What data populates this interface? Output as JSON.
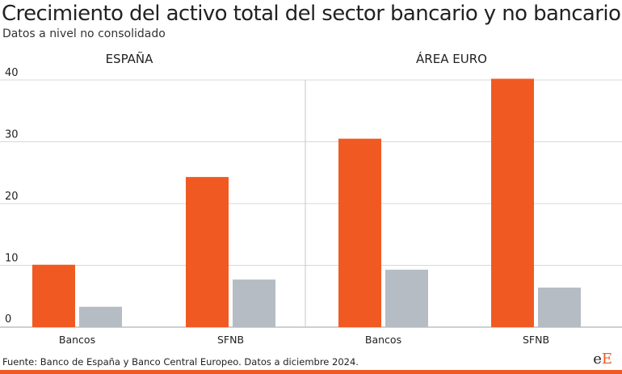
{
  "chart_data": {
    "type": "bar",
    "title": "Crecimiento del activo total del sector bancario y no bancario",
    "subtitle": "Datos a nivel no consolidado",
    "panels": [
      {
        "label": "ESPAÑA",
        "categories": [
          "Bancos",
          "SFNB"
        ],
        "series": [
          {
            "color": "#f05a22",
            "values": [
              10.1,
              24.3
            ]
          },
          {
            "color": "#b6bcc3",
            "values": [
              3.3,
              7.7
            ]
          }
        ]
      },
      {
        "label": "ÁREA EURO",
        "categories": [
          "Bancos",
          "SFNB"
        ],
        "series": [
          {
            "color": "#f05a22",
            "values": [
              30.5,
              40.2
            ]
          },
          {
            "color": "#b6bcc3",
            "values": [
              9.3,
              6.4
            ]
          }
        ]
      }
    ],
    "yticks": [
      "0",
      "10",
      "20",
      "30",
      "40"
    ],
    "ylim": [
      0,
      40
    ],
    "grid": true
  },
  "footer": {
    "source": "Fuente: Banco de España y Banco Central Europeo. Datos a diciembre 2024.",
    "logo_lower": "e",
    "logo_upper": "E"
  }
}
